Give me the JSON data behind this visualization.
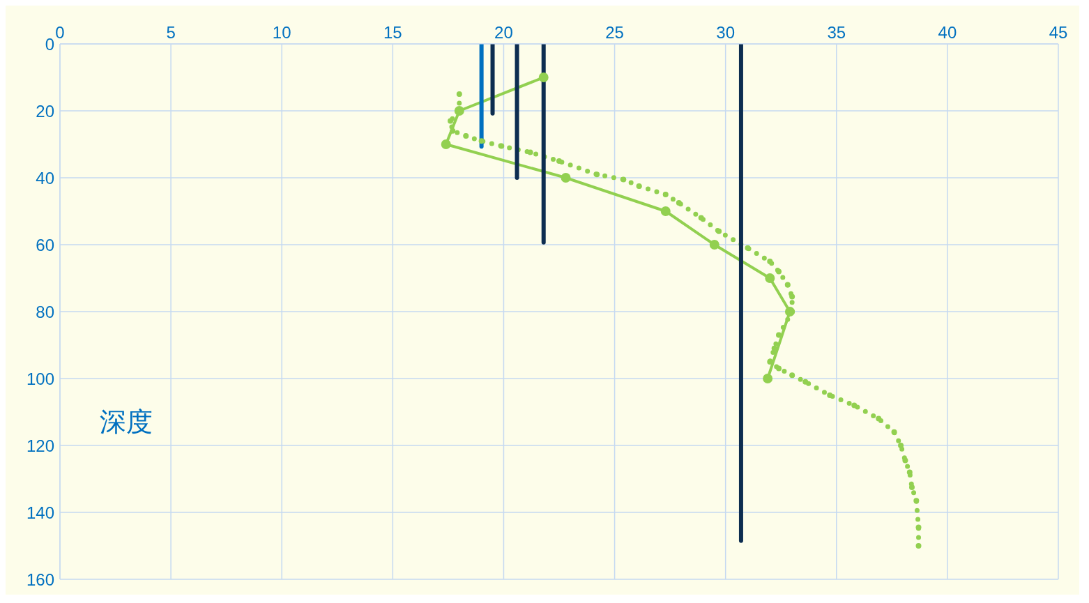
{
  "chart_data": {
    "type": "line",
    "xlim": [
      0,
      45
    ],
    "xticks": [
      0,
      5,
      10,
      15,
      20,
      25,
      30,
      35,
      40,
      45
    ],
    "ylim": [
      160,
      0
    ],
    "yticks": [
      0,
      20,
      40,
      60,
      80,
      100,
      120,
      140,
      160
    ],
    "grid": true,
    "annotations": [
      "深度"
    ],
    "series": [
      {
        "color": "#92d050",
        "marker": "circle",
        "line_style": "solid",
        "x": [
          21.8,
          18.0,
          17.4,
          22.8,
          27.3,
          29.5,
          32.0,
          32.9,
          31.9
        ],
        "values": [
          10,
          20,
          30,
          40,
          50,
          60,
          70,
          80,
          100
        ]
      },
      {
        "color": "#92d050",
        "marker": "circle",
        "line_style": "dotted",
        "x": [
          18.0,
          18.0,
          17.6,
          17.7,
          18.3,
          19.0,
          19.9,
          21.2,
          22.5,
          24.2,
          25.4,
          26.1,
          27.3,
          27.9,
          28.9,
          29.7,
          31.0,
          32.0,
          32.4,
          32.8,
          33.0,
          33.0,
          32.4,
          32.2,
          32.0,
          32.4,
          33.0,
          33.6,
          34.7,
          35.8,
          36.9,
          37.6,
          37.9,
          38.1,
          38.3,
          38.4,
          38.6,
          38.7,
          38.7
        ],
        "values": [
          15,
          20,
          23,
          26,
          27.5,
          29,
          30.5,
          32.4,
          35,
          39,
          40.5,
          42.5,
          45,
          47.5,
          52,
          56,
          61,
          65,
          68,
          72,
          75.5,
          80,
          87,
          91,
          95,
          97,
          99,
          101,
          105,
          108,
          112,
          116,
          120,
          124.5,
          128,
          132.5,
          136.5,
          144.5,
          150
        ]
      },
      {
        "color": "#0070c0",
        "marker": "none",
        "line_style": "solid",
        "x": [
          19.0,
          19.0
        ],
        "values": [
          0,
          30.7
        ]
      },
      {
        "color": "#0d2d50",
        "marker": "none",
        "line_style": "solid",
        "x": [
          19.5,
          19.5
        ],
        "values": [
          0,
          20.8
        ]
      },
      {
        "color": "#0d2d50",
        "marker": "none",
        "line_style": "solid",
        "x": [
          20.6,
          20.6
        ],
        "values": [
          0,
          40
        ]
      },
      {
        "color": "#0d2d50",
        "marker": "none",
        "line_style": "solid",
        "x": [
          21.8,
          21.8
        ],
        "values": [
          0,
          59.3
        ]
      },
      {
        "color": "#0d2d50",
        "marker": "none",
        "line_style": "solid",
        "x": [
          30.7,
          30.7
        ],
        "values": [
          0,
          148.5
        ]
      }
    ]
  }
}
